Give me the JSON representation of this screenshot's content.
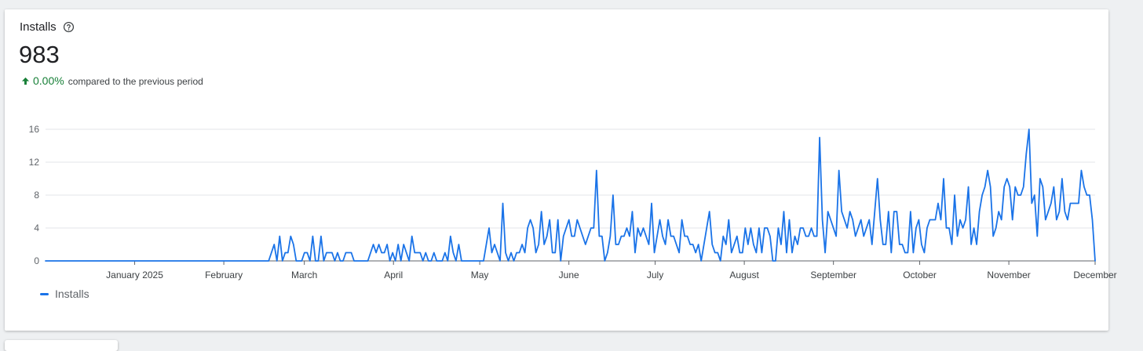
{
  "card": {
    "title": "Installs",
    "total": "983",
    "delta_value": "0.00%",
    "delta_text": "compared to the previous period",
    "help_icon": "help-circle-icon",
    "trend_icon": "arrow-up-icon"
  },
  "colors": {
    "series": "#1a73e8",
    "positive": "#188038"
  },
  "chart_data": {
    "type": "line",
    "start_date": "2024-12-01",
    "end_date": "2025-12-01",
    "xlabel": "",
    "ylabel": "",
    "ylim": [
      0,
      16
    ],
    "yticks": [
      0,
      4,
      8,
      12,
      16
    ],
    "xtick_labels": [
      {
        "date": "2025-01-01",
        "label": "January 2025"
      },
      {
        "date": "2025-02-01",
        "label": "February"
      },
      {
        "date": "2025-03-01",
        "label": "March"
      },
      {
        "date": "2025-04-01",
        "label": "April"
      },
      {
        "date": "2025-05-01",
        "label": "May"
      },
      {
        "date": "2025-06-01",
        "label": "June"
      },
      {
        "date": "2025-07-01",
        "label": "July"
      },
      {
        "date": "2025-08-01",
        "label": "August"
      },
      {
        "date": "2025-09-01",
        "label": "September"
      },
      {
        "date": "2025-10-01",
        "label": "October"
      },
      {
        "date": "2025-11-01",
        "label": "November"
      },
      {
        "date": "2025-12-01",
        "label": "December"
      }
    ],
    "grid": true,
    "legend_position": "bottom-left",
    "series": [
      {
        "name": "Installs",
        "values": [
          0,
          0,
          0,
          0,
          0,
          0,
          0,
          0,
          0,
          0,
          0,
          0,
          0,
          0,
          0,
          0,
          0,
          0,
          0,
          0,
          0,
          0,
          0,
          0,
          0,
          0,
          0,
          0,
          0,
          0,
          0,
          0,
          0,
          0,
          0,
          0,
          0,
          0,
          0,
          0,
          0,
          0,
          0,
          0,
          0,
          0,
          0,
          0,
          0,
          0,
          0,
          0,
          0,
          0,
          0,
          0,
          0,
          0,
          0,
          0,
          0,
          0,
          0,
          0,
          0,
          0,
          0,
          0,
          0,
          0,
          0,
          0,
          0,
          0,
          0,
          0,
          0,
          0,
          0,
          0,
          0,
          0,
          1,
          2,
          0,
          3,
          0,
          1,
          1,
          3,
          2,
          0,
          0,
          0,
          1,
          1,
          0,
          3,
          0,
          0,
          3,
          0,
          1,
          1,
          1,
          0,
          1,
          0,
          0,
          1,
          1,
          1,
          0,
          0,
          0,
          0,
          0,
          0,
          1,
          2,
          1,
          2,
          1,
          1,
          2,
          0,
          1,
          0,
          2,
          0,
          2,
          1,
          0,
          3,
          1,
          1,
          1,
          0,
          1,
          0,
          0,
          1,
          0,
          0,
          0,
          1,
          0,
          3,
          1,
          0,
          2,
          0,
          0,
          0,
          0,
          0,
          0,
          0,
          0,
          0,
          2,
          4,
          1,
          2,
          1,
          0,
          7,
          1,
          0,
          1,
          0,
          1,
          1,
          2,
          1,
          4,
          5,
          4,
          1,
          2,
          6,
          2,
          3,
          5,
          1,
          1,
          5,
          0,
          3,
          4,
          5,
          3,
          3,
          5,
          4,
          3,
          2,
          3,
          4,
          4,
          11,
          3,
          3,
          0,
          1,
          3,
          8,
          2,
          2,
          3,
          3,
          4,
          3,
          6,
          1,
          4,
          3,
          4,
          3,
          2,
          7,
          1,
          3,
          5,
          3,
          2,
          5,
          3,
          3,
          2,
          1,
          5,
          3,
          3,
          2,
          2,
          1,
          2,
          0,
          2,
          4,
          6,
          2,
          1,
          1,
          0,
          3,
          2,
          5,
          1,
          2,
          3,
          1,
          1,
          4,
          2,
          4,
          2,
          1,
          4,
          1,
          4,
          4,
          3,
          0,
          0,
          4,
          2,
          6,
          1,
          5,
          1,
          3,
          2,
          4,
          4,
          3,
          3,
          4,
          3,
          3,
          15,
          5,
          1,
          6,
          5,
          4,
          3,
          11,
          6,
          5,
          4,
          6,
          5,
          3,
          4,
          5,
          3,
          4,
          5,
          2,
          6,
          10,
          5,
          2,
          2,
          6,
          1,
          6,
          6,
          2,
          2,
          1,
          1,
          6,
          1,
          4,
          5,
          2,
          1,
          4,
          5,
          5,
          5,
          7,
          5,
          10,
          4,
          4,
          2,
          8,
          3,
          5,
          4,
          5,
          9,
          2,
          4,
          2,
          6,
          8,
          9,
          11,
          9,
          3,
          4,
          6,
          5,
          9,
          10,
          9,
          5,
          9,
          8,
          8,
          9,
          13,
          16,
          7,
          8,
          3,
          10,
          9,
          5,
          6,
          7,
          9,
          5,
          6,
          10,
          6,
          5,
          7,
          7,
          7,
          7,
          11,
          9,
          8,
          8,
          5,
          0
        ]
      }
    ]
  }
}
